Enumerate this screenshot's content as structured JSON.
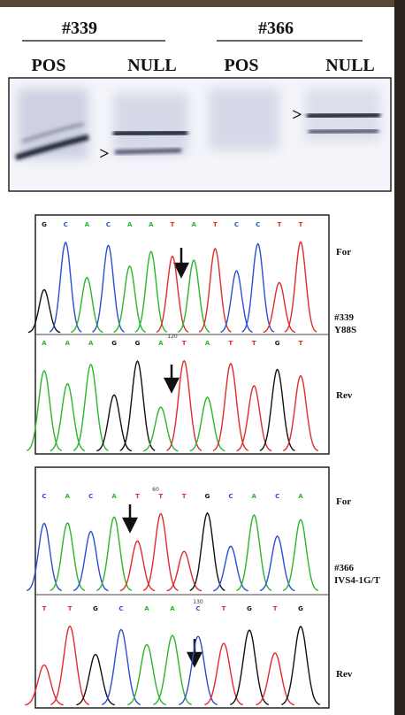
{
  "gel": {
    "groups": [
      {
        "label": "#339",
        "lanes": [
          "POS",
          "NULL"
        ]
      },
      {
        "label": "#366",
        "lanes": [
          "POS",
          "NULL"
        ]
      }
    ],
    "markers": [
      ">",
      ">"
    ]
  },
  "base_colors": {
    "A": "#2bb52b",
    "C": "#2b4fd0",
    "G": "#111111",
    "T": "#e02b2b"
  },
  "chromatograms": [
    {
      "sample": "#339",
      "mutation": "Y88S",
      "rows": [
        {
          "label": "For",
          "bases": [
            "G",
            "C",
            "A",
            "C",
            "A",
            "A",
            "T",
            "A",
            "T",
            "C",
            "C",
            "T",
            "T"
          ]
        },
        {
          "label": "Rev",
          "position": "120",
          "bases": [
            "A",
            "A",
            "A",
            "G",
            "G",
            "A",
            "T",
            "A",
            "T",
            "T",
            "G",
            "T"
          ]
        }
      ]
    },
    {
      "sample": "#366",
      "mutation": "IVS4-1G/T",
      "rows": [
        {
          "label": "For",
          "position": "60",
          "bases": [
            "C",
            "A",
            "C",
            "A",
            "T",
            "T",
            "T",
            "G",
            "C",
            "A",
            "C",
            "A"
          ]
        },
        {
          "label": "Rev",
          "position": "130",
          "bases": [
            "T",
            "T",
            "G",
            "C",
            "A",
            "A",
            "C",
            "T",
            "G",
            "T",
            "G"
          ]
        }
      ]
    }
  ]
}
